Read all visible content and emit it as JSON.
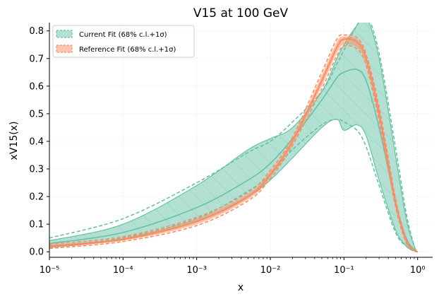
{
  "chart_data": {
    "type": "area",
    "title": "V15 at 100 GeV",
    "xlabel": "x",
    "ylabel": "xV15(x)",
    "xscale": "log",
    "xlim": [
      1e-05,
      1.6
    ],
    "ylim": [
      -0.02,
      0.83
    ],
    "xticks": [
      {
        "value": 1e-05,
        "label": "10⁻⁵"
      },
      {
        "value": 0.0001,
        "label": "10⁻⁴"
      },
      {
        "value": 0.001,
        "label": "10⁻³"
      },
      {
        "value": 0.01,
        "label": "10⁻²"
      },
      {
        "value": 0.1,
        "label": "10⁻¹"
      },
      {
        "value": 1,
        "label": "10⁰"
      }
    ],
    "yticks": [
      {
        "value": 0.0,
        "label": "0.0"
      },
      {
        "value": 0.1,
        "label": "0.1"
      },
      {
        "value": 0.2,
        "label": "0.2"
      },
      {
        "value": 0.3,
        "label": "0.3"
      },
      {
        "value": 0.4,
        "label": "0.4"
      },
      {
        "value": 0.5,
        "label": "0.5"
      },
      {
        "value": 0.6,
        "label": "0.6"
      },
      {
        "value": 0.7,
        "label": "0.7"
      },
      {
        "value": 0.8,
        "label": "0.8"
      }
    ],
    "grid": true,
    "legend_position": "top-left",
    "x": [
      1e-05,
      0.0001,
      0.001,
      0.005,
      0.01,
      0.02,
      0.05,
      0.08,
      0.1,
      0.15,
      0.2,
      0.3,
      0.5,
      0.7,
      0.9,
      1.0
    ],
    "series": [
      {
        "name": "Current Fit (68% c.l.+1σ)",
        "color": "#66c2a5",
        "central": [
          0.03,
          0.07,
          0.16,
          0.26,
          0.32,
          0.41,
          0.55,
          0.63,
          0.65,
          0.66,
          0.62,
          0.45,
          0.18,
          0.05,
          0.008,
          0.0
        ],
        "band_upper": [
          0.04,
          0.1,
          0.24,
          0.37,
          0.41,
          0.45,
          0.58,
          0.7,
          0.75,
          0.82,
          0.85,
          0.7,
          0.35,
          0.12,
          0.02,
          0.0
        ],
        "band_lower": [
          0.015,
          0.045,
          0.11,
          0.2,
          0.26,
          0.34,
          0.45,
          0.48,
          0.44,
          0.46,
          0.42,
          0.26,
          0.08,
          0.02,
          0.003,
          0.0
        ],
        "stat_upper": [
          0.05,
          0.12,
          0.25,
          0.36,
          0.4,
          0.47,
          0.58,
          0.68,
          0.73,
          0.82,
          0.86,
          0.72,
          0.38,
          0.14,
          0.02,
          0.0
        ],
        "stat_lower": [
          0.02,
          0.05,
          0.12,
          0.22,
          0.28,
          0.37,
          0.46,
          0.48,
          0.47,
          0.44,
          0.38,
          0.24,
          0.07,
          0.02,
          0.002,
          0.0
        ]
      },
      {
        "name": "Reference Fit (68% c.l.+1σ)",
        "color": "#fc8d62",
        "central": [
          0.02,
          0.045,
          0.11,
          0.2,
          0.28,
          0.4,
          0.62,
          0.74,
          0.77,
          0.76,
          0.7,
          0.5,
          0.18,
          0.04,
          0.005,
          0.0
        ],
        "band_upper": [
          0.025,
          0.05,
          0.12,
          0.21,
          0.29,
          0.41,
          0.64,
          0.76,
          0.78,
          0.77,
          0.71,
          0.52,
          0.19,
          0.045,
          0.006,
          0.0
        ],
        "band_lower": [
          0.015,
          0.04,
          0.1,
          0.19,
          0.27,
          0.39,
          0.6,
          0.72,
          0.75,
          0.74,
          0.68,
          0.48,
          0.17,
          0.035,
          0.004,
          0.0
        ],
        "stat_upper": [
          0.028,
          0.055,
          0.125,
          0.215,
          0.295,
          0.415,
          0.65,
          0.77,
          0.785,
          0.775,
          0.715,
          0.525,
          0.195,
          0.047,
          0.006,
          0.0
        ],
        "stat_lower": [
          0.012,
          0.037,
          0.095,
          0.185,
          0.265,
          0.385,
          0.59,
          0.71,
          0.745,
          0.735,
          0.675,
          0.475,
          0.165,
          0.033,
          0.004,
          0.0
        ]
      }
    ]
  }
}
